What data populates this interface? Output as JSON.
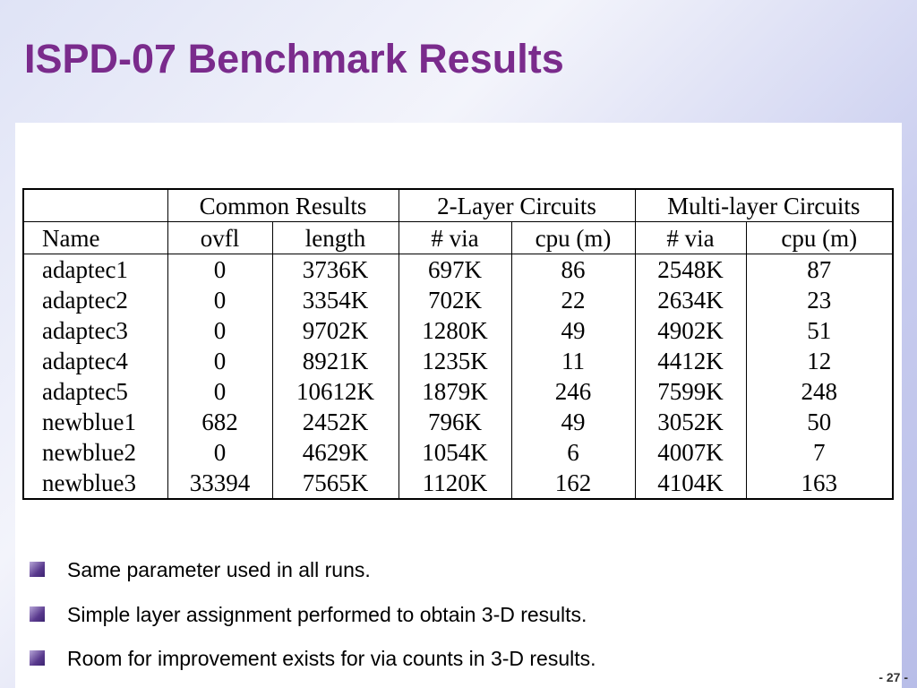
{
  "header": {
    "title": "ISPD-07 Benchmark Results"
  },
  "table": {
    "group_headers": [
      "Common Results",
      "2-Layer Circuits",
      "Multi-layer Circuits"
    ],
    "columns": [
      "Name",
      "ovfl",
      "length",
      "# via",
      "cpu (m)",
      "# via",
      "cpu (m)"
    ],
    "rows": [
      [
        "adaptec1",
        0,
        "3736K",
        "697K",
        86,
        "2548K",
        87
      ],
      [
        "adaptec2",
        0,
        "3354K",
        "702K",
        22,
        "2634K",
        23
      ],
      [
        "adaptec3",
        0,
        "9702K",
        "1280K",
        49,
        "4902K",
        51
      ],
      [
        "adaptec4",
        0,
        "8921K",
        "1235K",
        11,
        "4412K",
        12
      ],
      [
        "adaptec5",
        0,
        "10612K",
        "1879K",
        246,
        "7599K",
        248
      ],
      [
        "newblue1",
        682,
        "2452K",
        "796K",
        49,
        "3052K",
        50
      ],
      [
        "newblue2",
        0,
        "4629K",
        "1054K",
        6,
        "4007K",
        7
      ],
      [
        "newblue3",
        33394,
        "7565K",
        "1120K",
        162,
        "4104K",
        163
      ]
    ]
  },
  "bullets": [
    "Same parameter used in all runs.",
    "Simple layer assignment performed to obtain 3-D results.",
    "Room for improvement exists for via counts in 3-D results."
  ],
  "footer": {
    "page_number": "- 27 -"
  }
}
